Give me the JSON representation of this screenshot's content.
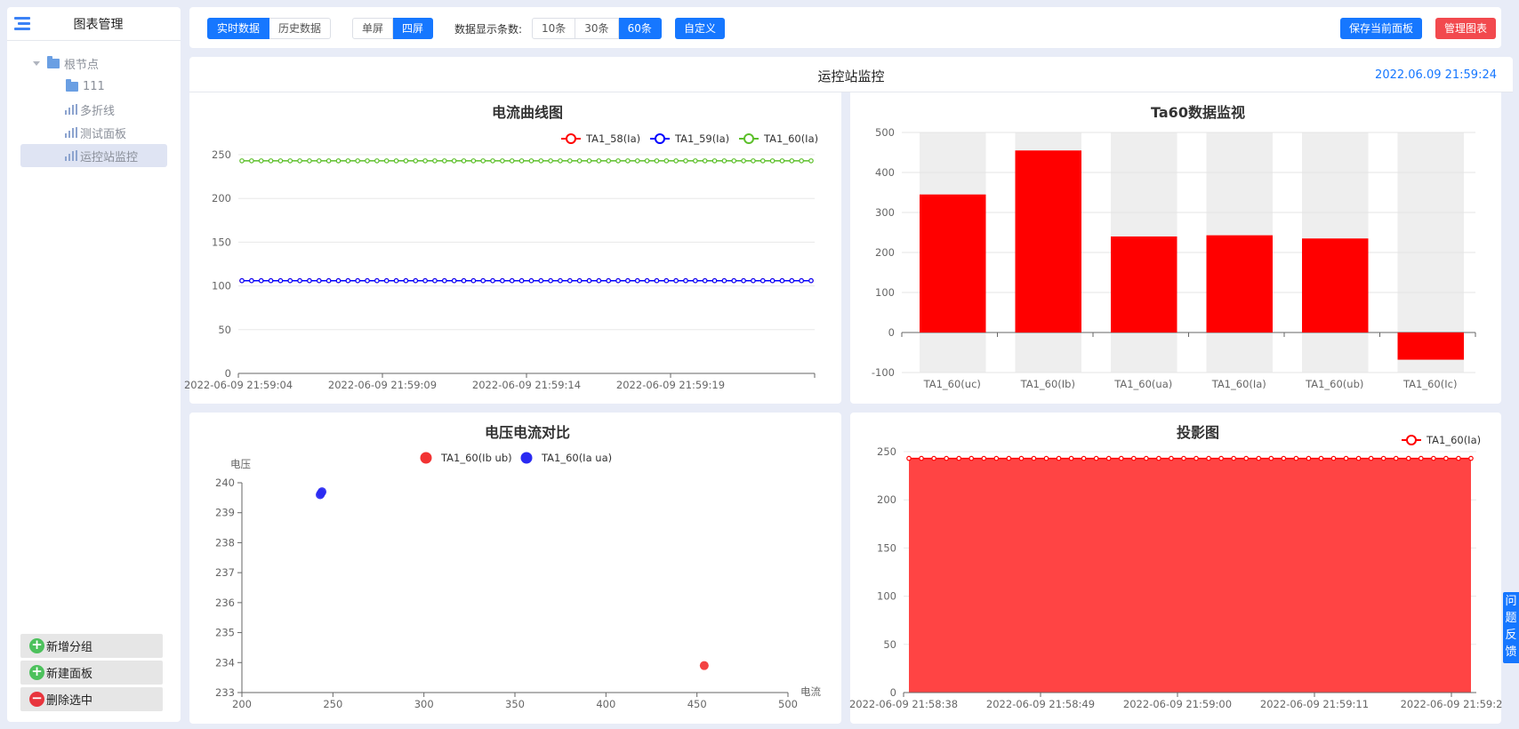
{
  "sidebar": {
    "title": "图表管理",
    "tree": {
      "root": "根节点",
      "items": [
        {
          "label": "111",
          "kind": "folder"
        },
        {
          "label": "多折线",
          "kind": "chart"
        },
        {
          "label": "测试面板",
          "kind": "chart"
        },
        {
          "label": "运控站监控",
          "kind": "chart",
          "selected": true
        }
      ]
    },
    "actions": {
      "add_group": "新增分组",
      "new_panel": "新建面板",
      "delete_selected": "删除选中"
    }
  },
  "toolbar": {
    "data_modes": [
      "实时数据",
      "历史数据"
    ],
    "active_mode": "实时数据",
    "screens": [
      "单屏",
      "四屏"
    ],
    "active_screen": "四屏",
    "count_label": "数据显示条数:",
    "counts": [
      "10条",
      "30条",
      "60条"
    ],
    "active_count": "60条",
    "custom": "自定义",
    "save": "保存当前面板",
    "manage": "管理图表"
  },
  "header": {
    "title": "运控站监控",
    "timestamp": "2022.06.09 21:59:24"
  },
  "feedback": "问题反馈",
  "colors": {
    "primary": "#1677ff",
    "danger": "#f2494e",
    "red": "#ff0000",
    "blue": "#0000ff",
    "green": "#5cbf2a",
    "scatter_red": "#f23333",
    "scatter_blue": "#2a2af2"
  },
  "chart_data": [
    {
      "type": "line",
      "title": "电流曲线图",
      "x_ticks": [
        "2022-06-09 21:59:04",
        "2022-06-09 21:59:09",
        "2022-06-09 21:59:14",
        "2022-06-09 21:59:19"
      ],
      "points_per_series": 60,
      "ylim": [
        0,
        250
      ],
      "y_ticks": [
        0,
        50,
        100,
        150,
        200,
        250
      ],
      "legend_position": "top-right",
      "series": [
        {
          "name": "TA1_58(Ia)",
          "color": "#ff0000",
          "value": 106
        },
        {
          "name": "TA1_59(Ia)",
          "color": "#0000ff",
          "value": 106
        },
        {
          "name": "TA1_60(Ia)",
          "color": "#5cbf2a",
          "value": 243
        }
      ]
    },
    {
      "type": "bar",
      "title": "Ta60数据监视",
      "categories": [
        "TA1_60(uc)",
        "TA1_60(Ib)",
        "TA1_60(ua)",
        "TA1_60(Ia)",
        "TA1_60(ub)",
        "TA1_60(Ic)"
      ],
      "values": [
        345,
        455,
        240,
        243,
        235,
        -68
      ],
      "ylim": [
        -100,
        500
      ],
      "y_ticks": [
        -100,
        0,
        100,
        200,
        300,
        400,
        500
      ],
      "color": "#ff0000"
    },
    {
      "type": "scatter",
      "title": "电压电流对比",
      "xlabel": "电流",
      "ylabel": "电压",
      "xlim": [
        200,
        500
      ],
      "ylim": [
        233,
        240
      ],
      "x_ticks": [
        200,
        250,
        300,
        350,
        400,
        450,
        500
      ],
      "y_ticks": [
        233,
        234,
        235,
        236,
        237,
        238,
        239,
        240
      ],
      "legend_position": "top-center",
      "series": [
        {
          "name": "TA1_60(Ib ub)",
          "color": "#f23333",
          "points": [
            [
              454,
              233.9
            ]
          ]
        },
        {
          "name": "TA1_60(Ia ua)",
          "color": "#2a2af2",
          "points": [
            [
              243,
              239.6
            ],
            [
              244,
              239.7
            ],
            [
              243.5,
              239.65
            ]
          ]
        }
      ]
    },
    {
      "type": "area",
      "title": "投影图",
      "x_ticks": [
        "2022-06-09 21:58:38",
        "2022-06-09 21:58:49",
        "2022-06-09 21:59:00",
        "2022-06-09 21:59:11",
        "2022-06-09 21:59:2"
      ],
      "points_per_series": 46,
      "ylim": [
        0,
        250
      ],
      "y_ticks": [
        0,
        50,
        100,
        150,
        200,
        250
      ],
      "legend_position": "top-right",
      "series": [
        {
          "name": "TA1_60(Ia)",
          "color": "#ff0000",
          "value": 243
        }
      ]
    }
  ]
}
